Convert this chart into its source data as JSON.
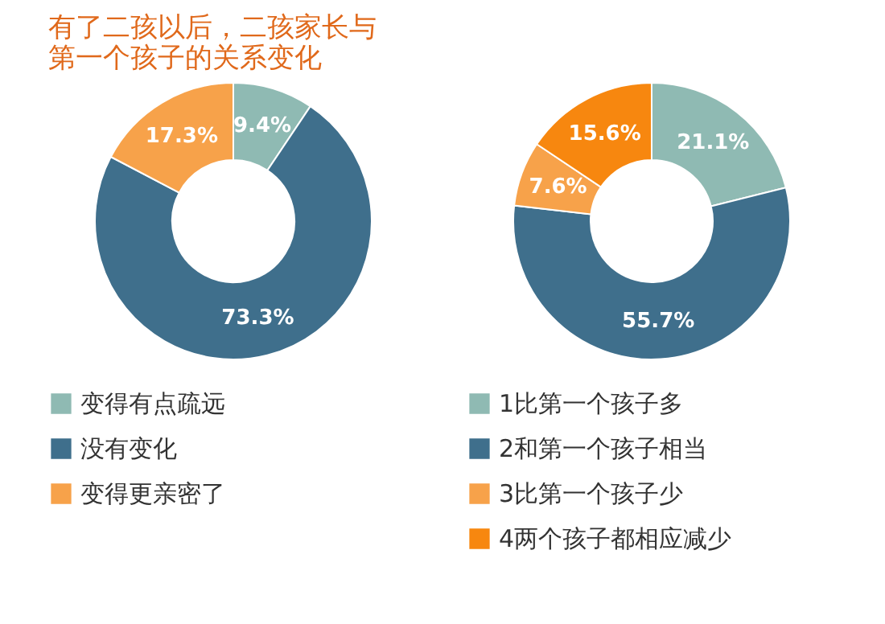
{
  "chart_data": [
    {
      "type": "donut",
      "title": "有了二孩以后，二孩家长与第一个孩子的关系变化",
      "categories": [
        "变得有点疏远",
        "没有变化",
        "变得更亲密了"
      ],
      "values": [
        9.4,
        73.3,
        17.3
      ],
      "colors": [
        "#8fbab3",
        "#3f6f8c",
        "#f7a24a"
      ],
      "value_labels": [
        "9.4%",
        "73.3%",
        "17.3%"
      ],
      "legend": "bottom"
    },
    {
      "type": "donut",
      "categories": [
        "1比第一个孩子多",
        "2和第一个孩子相当",
        "3比第一个孩子少",
        "4两个孩子都相应减少"
      ],
      "values": [
        21.1,
        55.7,
        7.6,
        15.6
      ],
      "colors": [
        "#8fbab3",
        "#3f6f8c",
        "#f7a24a",
        "#f7870f"
      ],
      "value_labels": [
        "21.1%",
        "55.7%",
        "7.6%",
        "15.6%"
      ],
      "legend": "bottom"
    }
  ]
}
